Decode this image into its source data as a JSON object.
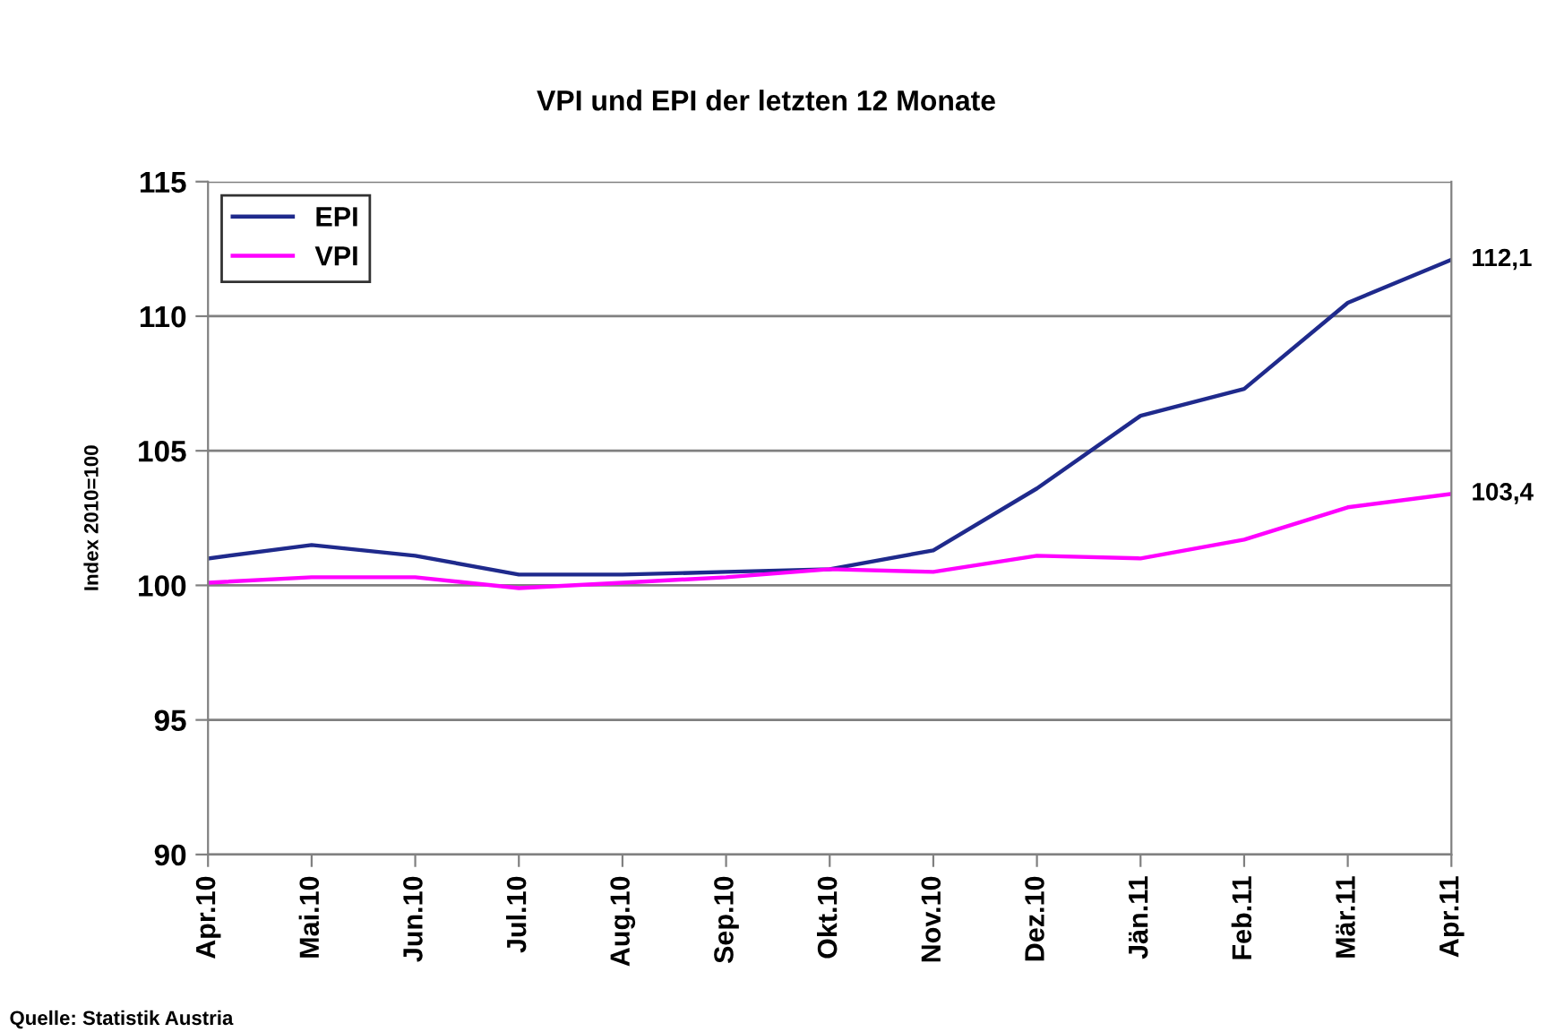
{
  "chart_data": {
    "type": "line",
    "title": "VPI und EPI der letzten 12 Monate",
    "ylabel": "Index 2010=100",
    "categories": [
      "Apr.10",
      "Mai.10",
      "Jun.10",
      "Jul.10",
      "Aug.10",
      "Sep.10",
      "Okt.10",
      "Nov.10",
      "Dez.10",
      "Jän.11",
      "Feb.11",
      "Mär.11",
      "Apr.11"
    ],
    "series": [
      {
        "name": "EPI",
        "color": "#1f2a8c",
        "values": [
          101.0,
          101.5,
          101.1,
          100.4,
          100.4,
          100.5,
          100.6,
          101.3,
          103.6,
          106.3,
          107.3,
          110.5,
          112.1
        ],
        "value_labels": [
          null,
          null,
          null,
          null,
          null,
          null,
          null,
          null,
          null,
          null,
          null,
          null,
          "112,1"
        ]
      },
      {
        "name": "VPI",
        "color": "#ff00ff",
        "values": [
          100.1,
          100.3,
          100.3,
          99.9,
          100.1,
          100.3,
          100.6,
          100.5,
          101.1,
          101.0,
          101.7,
          102.9,
          103.4
        ],
        "value_labels": [
          null,
          null,
          null,
          null,
          null,
          null,
          null,
          null,
          null,
          null,
          null,
          null,
          "103,4"
        ]
      }
    ],
    "ylim": [
      90,
      115
    ],
    "yticks": [
      90,
      95,
      100,
      105,
      110,
      115
    ],
    "grid": "y",
    "legend": "top left",
    "marker": "none",
    "line_style": "solid",
    "annotations": [
      "Quelle: Statistik Austria"
    ]
  }
}
